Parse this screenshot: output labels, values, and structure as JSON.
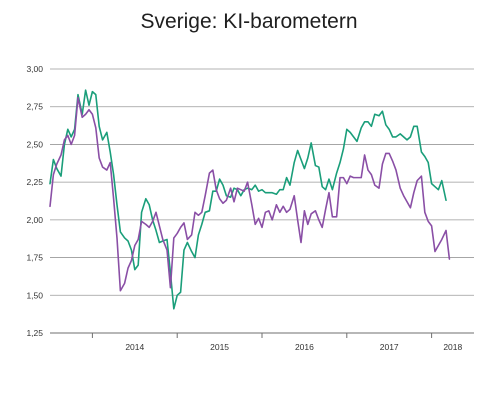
{
  "chart_data": {
    "type": "line",
    "title": "Sverige: KI-barometern",
    "xlabel": "",
    "ylabel": "",
    "ylim": [
      1.25,
      3.0
    ],
    "yticks": [
      "3,00",
      "2,75",
      "2,50",
      "2,25",
      "2,00",
      "1,75",
      "1,50",
      "1,25"
    ],
    "ytick_values": [
      3.0,
      2.75,
      2.5,
      2.25,
      2.0,
      1.75,
      1.5,
      1.25
    ],
    "xticks": [
      "2014",
      "2015",
      "2016",
      "2017",
      "2018"
    ],
    "x_start": 2013.5,
    "x_end": 2018.5,
    "grid": true,
    "series": [
      {
        "color": "#1a9e7a",
        "values": [
          [
            2013.5,
            2.24
          ],
          [
            2013.54,
            2.4
          ],
          [
            2013.58,
            2.34
          ],
          [
            2013.63,
            2.29
          ],
          [
            2013.67,
            2.5
          ],
          [
            2013.71,
            2.6
          ],
          [
            2013.75,
            2.55
          ],
          [
            2013.79,
            2.6
          ],
          [
            2013.83,
            2.83
          ],
          [
            2013.88,
            2.7
          ],
          [
            2013.92,
            2.86
          ],
          [
            2013.96,
            2.76
          ],
          [
            2014.0,
            2.85
          ],
          [
            2014.04,
            2.83
          ],
          [
            2014.08,
            2.62
          ],
          [
            2014.12,
            2.53
          ],
          [
            2014.17,
            2.58
          ],
          [
            2014.21,
            2.45
          ],
          [
            2014.25,
            2.3
          ],
          [
            2014.29,
            2.1
          ],
          [
            2014.33,
            1.92
          ],
          [
            2014.38,
            1.88
          ],
          [
            2014.42,
            1.86
          ],
          [
            2014.46,
            1.8
          ],
          [
            2014.5,
            1.67
          ],
          [
            2014.54,
            1.7
          ],
          [
            2014.58,
            2.05
          ],
          [
            2014.63,
            2.14
          ],
          [
            2014.67,
            2.1
          ],
          [
            2014.71,
            2.0
          ],
          [
            2014.75,
            1.93
          ],
          [
            2014.79,
            1.85
          ],
          [
            2014.83,
            1.86
          ],
          [
            2014.88,
            1.87
          ],
          [
            2014.92,
            1.65
          ],
          [
            2014.96,
            1.41
          ],
          [
            2015.0,
            1.5
          ],
          [
            2015.04,
            1.52
          ],
          [
            2015.08,
            1.8
          ],
          [
            2015.12,
            1.85
          ],
          [
            2015.17,
            1.79
          ],
          [
            2015.21,
            1.75
          ],
          [
            2015.25,
            1.9
          ],
          [
            2015.29,
            1.97
          ],
          [
            2015.33,
            2.05
          ],
          [
            2015.38,
            2.06
          ],
          [
            2015.42,
            2.19
          ],
          [
            2015.46,
            2.19
          ],
          [
            2015.5,
            2.27
          ],
          [
            2015.54,
            2.23
          ],
          [
            2015.58,
            2.16
          ],
          [
            2015.63,
            2.15
          ],
          [
            2015.67,
            2.21
          ],
          [
            2015.71,
            2.2
          ],
          [
            2015.75,
            2.16
          ],
          [
            2015.79,
            2.2
          ],
          [
            2015.83,
            2.21
          ],
          [
            2015.88,
            2.2
          ],
          [
            2015.92,
            2.23
          ],
          [
            2015.96,
            2.19
          ],
          [
            2016.0,
            2.2
          ],
          [
            2016.04,
            2.18
          ],
          [
            2016.08,
            2.18
          ],
          [
            2016.12,
            2.18
          ],
          [
            2016.17,
            2.17
          ],
          [
            2016.21,
            2.2
          ],
          [
            2016.25,
            2.2
          ],
          [
            2016.29,
            2.28
          ],
          [
            2016.33,
            2.23
          ],
          [
            2016.38,
            2.38
          ],
          [
            2016.42,
            2.46
          ],
          [
            2016.46,
            2.4
          ],
          [
            2016.5,
            2.34
          ],
          [
            2016.54,
            2.41
          ],
          [
            2016.58,
            2.51
          ],
          [
            2016.63,
            2.36
          ],
          [
            2016.67,
            2.35
          ],
          [
            2016.71,
            2.22
          ],
          [
            2016.75,
            2.2
          ],
          [
            2016.79,
            2.27
          ],
          [
            2016.83,
            2.2
          ],
          [
            2016.88,
            2.31
          ],
          [
            2016.92,
            2.38
          ],
          [
            2016.96,
            2.47
          ],
          [
            2017.0,
            2.6
          ],
          [
            2017.04,
            2.58
          ],
          [
            2017.08,
            2.55
          ],
          [
            2017.12,
            2.52
          ],
          [
            2017.17,
            2.61
          ],
          [
            2017.21,
            2.65
          ],
          [
            2017.25,
            2.65
          ],
          [
            2017.29,
            2.62
          ],
          [
            2017.33,
            2.7
          ],
          [
            2017.38,
            2.69
          ],
          [
            2017.42,
            2.72
          ],
          [
            2017.46,
            2.63
          ],
          [
            2017.5,
            2.6
          ],
          [
            2017.54,
            2.55
          ],
          [
            2017.58,
            2.55
          ],
          [
            2017.63,
            2.57
          ],
          [
            2017.67,
            2.55
          ],
          [
            2017.71,
            2.53
          ],
          [
            2017.75,
            2.55
          ],
          [
            2017.79,
            2.62
          ],
          [
            2017.83,
            2.62
          ],
          [
            2017.88,
            2.45
          ],
          [
            2017.92,
            2.42
          ],
          [
            2017.96,
            2.38
          ],
          [
            2018.0,
            2.24
          ],
          [
            2018.04,
            2.22
          ],
          [
            2018.08,
            2.2
          ],
          [
            2018.12,
            2.26
          ],
          [
            2018.17,
            2.13
          ]
        ]
      },
      {
        "color": "#8a4fa6",
        "values": [
          [
            2013.5,
            2.09
          ],
          [
            2013.54,
            2.3
          ],
          [
            2013.58,
            2.37
          ],
          [
            2013.63,
            2.43
          ],
          [
            2013.67,
            2.53
          ],
          [
            2013.71,
            2.56
          ],
          [
            2013.75,
            2.5
          ],
          [
            2013.79,
            2.56
          ],
          [
            2013.83,
            2.81
          ],
          [
            2013.88,
            2.68
          ],
          [
            2013.92,
            2.7
          ],
          [
            2013.96,
            2.73
          ],
          [
            2014.0,
            2.7
          ],
          [
            2014.04,
            2.61
          ],
          [
            2014.08,
            2.41
          ],
          [
            2014.12,
            2.35
          ],
          [
            2014.17,
            2.33
          ],
          [
            2014.21,
            2.38
          ],
          [
            2014.25,
            2.14
          ],
          [
            2014.29,
            1.88
          ],
          [
            2014.33,
            1.53
          ],
          [
            2014.38,
            1.58
          ],
          [
            2014.42,
            1.68
          ],
          [
            2014.46,
            1.73
          ],
          [
            2014.5,
            1.83
          ],
          [
            2014.54,
            1.87
          ],
          [
            2014.58,
            1.99
          ],
          [
            2014.63,
            1.97
          ],
          [
            2014.67,
            1.95
          ],
          [
            2014.71,
            1.99
          ],
          [
            2014.75,
            2.05
          ],
          [
            2014.79,
            1.96
          ],
          [
            2014.83,
            1.87
          ],
          [
            2014.88,
            1.8
          ],
          [
            2014.92,
            1.55
          ],
          [
            2014.96,
            1.88
          ],
          [
            2015.0,
            1.91
          ],
          [
            2015.04,
            1.95
          ],
          [
            2015.08,
            1.98
          ],
          [
            2015.12,
            1.87
          ],
          [
            2015.17,
            1.9
          ],
          [
            2015.21,
            2.05
          ],
          [
            2015.25,
            2.03
          ],
          [
            2015.29,
            2.05
          ],
          [
            2015.33,
            2.16
          ],
          [
            2015.38,
            2.31
          ],
          [
            2015.42,
            2.33
          ],
          [
            2015.46,
            2.2
          ],
          [
            2015.5,
            2.14
          ],
          [
            2015.54,
            2.11
          ],
          [
            2015.58,
            2.13
          ],
          [
            2015.63,
            2.21
          ],
          [
            2015.67,
            2.12
          ],
          [
            2015.71,
            2.21
          ],
          [
            2015.75,
            2.2
          ],
          [
            2015.79,
            2.19
          ],
          [
            2015.83,
            2.25
          ],
          [
            2015.88,
            2.1
          ],
          [
            2015.92,
            1.97
          ],
          [
            2015.96,
            2.01
          ],
          [
            2016.0,
            1.95
          ],
          [
            2016.04,
            2.05
          ],
          [
            2016.08,
            2.06
          ],
          [
            2016.12,
            2.0
          ],
          [
            2016.17,
            2.1
          ],
          [
            2016.21,
            2.05
          ],
          [
            2016.25,
            2.09
          ],
          [
            2016.29,
            2.05
          ],
          [
            2016.33,
            2.07
          ],
          [
            2016.38,
            2.16
          ],
          [
            2016.42,
            2.0
          ],
          [
            2016.46,
            1.85
          ],
          [
            2016.5,
            2.06
          ],
          [
            2016.54,
            1.97
          ],
          [
            2016.58,
            2.04
          ],
          [
            2016.63,
            2.06
          ],
          [
            2016.67,
            2.0
          ],
          [
            2016.71,
            1.95
          ],
          [
            2016.75,
            2.07
          ],
          [
            2016.79,
            2.18
          ],
          [
            2016.83,
            2.02
          ],
          [
            2016.88,
            2.02
          ],
          [
            2016.92,
            2.28
          ],
          [
            2016.96,
            2.28
          ],
          [
            2017.0,
            2.24
          ],
          [
            2017.04,
            2.29
          ],
          [
            2017.08,
            2.28
          ],
          [
            2017.12,
            2.28
          ],
          [
            2017.17,
            2.28
          ],
          [
            2017.21,
            2.43
          ],
          [
            2017.25,
            2.33
          ],
          [
            2017.29,
            2.3
          ],
          [
            2017.33,
            2.23
          ],
          [
            2017.38,
            2.21
          ],
          [
            2017.42,
            2.37
          ],
          [
            2017.46,
            2.44
          ],
          [
            2017.5,
            2.44
          ],
          [
            2017.54,
            2.39
          ],
          [
            2017.58,
            2.33
          ],
          [
            2017.63,
            2.21
          ],
          [
            2017.67,
            2.16
          ],
          [
            2017.71,
            2.12
          ],
          [
            2017.75,
            2.08
          ],
          [
            2017.79,
            2.18
          ],
          [
            2017.83,
            2.26
          ],
          [
            2017.88,
            2.29
          ],
          [
            2017.92,
            2.05
          ],
          [
            2017.96,
            1.99
          ],
          [
            2018.0,
            1.96
          ],
          [
            2018.04,
            1.79
          ],
          [
            2018.08,
            1.83
          ],
          [
            2018.12,
            1.87
          ],
          [
            2018.17,
            1.93
          ],
          [
            2018.21,
            1.74
          ]
        ]
      }
    ]
  }
}
